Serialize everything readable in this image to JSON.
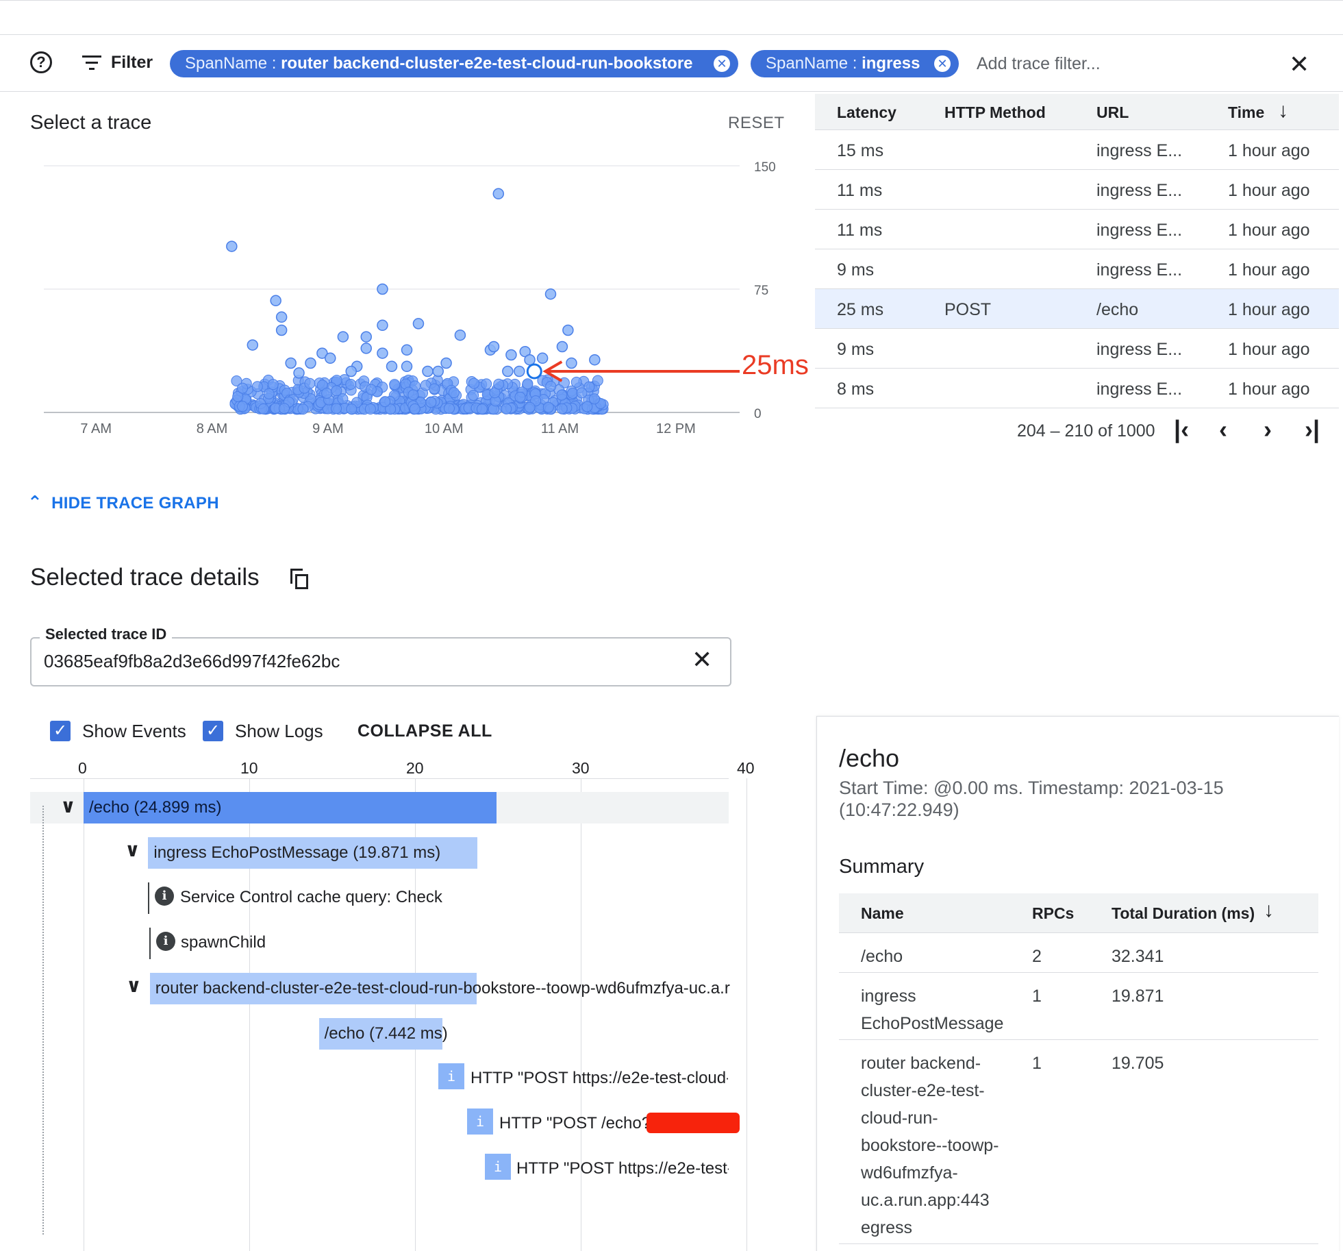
{
  "filter_bar": {
    "help_icon": "help-circle-icon",
    "filter_label": "Filter",
    "chips": [
      {
        "key": "SpanName : ",
        "value": "router backend-cluster-e2e-test-cloud-run-bookstore"
      },
      {
        "key": "SpanName : ",
        "value": "ingress"
      }
    ],
    "add_placeholder": "Add trace filter...",
    "close_icon": "close-icon"
  },
  "scatter": {
    "title": "Select a trace",
    "reset_label": "RESET",
    "y_ticks": [
      "150",
      "75",
      "0"
    ],
    "x_ticks": [
      "7 AM",
      "8 AM",
      "9 AM",
      "10 AM",
      "11 AM",
      "12 PM"
    ],
    "annotation": "25ms",
    "accent": "#4285f4"
  },
  "chart_data": {
    "type": "scatter",
    "xlabel": "",
    "ylabel": "",
    "x_ticks": [
      "7 AM",
      "8 AM",
      "9 AM",
      "10 AM",
      "11 AM",
      "12 PM"
    ],
    "ylim": [
      0,
      150
    ],
    "y_ticks": [
      0,
      75,
      150
    ],
    "points_hours": [
      [
        8.17,
        101
      ],
      [
        10.47,
        133
      ],
      [
        8.55,
        68
      ],
      [
        8.6,
        58
      ],
      [
        8.6,
        50
      ],
      [
        8.35,
        41
      ],
      [
        9.47,
        75
      ],
      [
        9.47,
        53
      ],
      [
        9.47,
        36
      ],
      [
        9.78,
        54
      ],
      [
        9.68,
        38
      ],
      [
        10.14,
        47
      ],
      [
        8.95,
        36
      ],
      [
        9.13,
        46
      ],
      [
        9.33,
        39
      ],
      [
        9.33,
        46
      ],
      [
        10.4,
        38
      ],
      [
        10.43,
        40
      ],
      [
        10.92,
        72
      ],
      [
        11.07,
        50
      ],
      [
        11.02,
        40
      ],
      [
        10.58,
        35
      ],
      [
        10.7,
        37
      ],
      [
        10.74,
        32
      ],
      [
        9.02,
        33
      ],
      [
        9.25,
        28
      ],
      [
        9.55,
        28
      ],
      [
        9.68,
        28
      ],
      [
        9.86,
        25
      ],
      [
        10.02,
        30
      ],
      [
        8.68,
        30
      ],
      [
        8.85,
        30
      ],
      [
        8.75,
        24
      ],
      [
        9.2,
        25
      ],
      [
        9.95,
        25
      ],
      [
        10.55,
        25
      ],
      [
        10.65,
        25
      ],
      [
        10.85,
        33
      ],
      [
        11.1,
        30
      ],
      [
        11.3,
        32
      ],
      [
        10.78,
        25
      ]
    ],
    "selected_point": [
      10.78,
      25
    ],
    "selected_label": "25ms"
  },
  "trace_table": {
    "columns": [
      "Latency",
      "HTTP Method",
      "URL",
      "Time"
    ],
    "sort_icon": "arrow-down-icon",
    "rows": [
      {
        "latency": "15 ms",
        "method": "",
        "url": "ingress E...",
        "time": "1 hour ago"
      },
      {
        "latency": "11 ms",
        "method": "",
        "url": "ingress E...",
        "time": "1 hour ago"
      },
      {
        "latency": "11 ms",
        "method": "",
        "url": "ingress E...",
        "time": "1 hour ago"
      },
      {
        "latency": "9 ms",
        "method": "",
        "url": "ingress E...",
        "time": "1 hour ago"
      },
      {
        "latency": "25 ms",
        "method": "POST",
        "url": "/echo",
        "time": "1 hour ago"
      },
      {
        "latency": "9 ms",
        "method": "",
        "url": "ingress E...",
        "time": "1 hour ago"
      },
      {
        "latency": "8 ms",
        "method": "",
        "url": "ingress E...",
        "time": "1 hour ago"
      }
    ],
    "pagination": "204 – 210 of 1000"
  },
  "hide_graph_label": "HIDE TRACE GRAPH",
  "details": {
    "title": "Selected trace details",
    "trace_id_label": "Selected trace ID",
    "trace_id": "03685eaf9fb8a2d3e66d997f42fe62bc",
    "show_events": "Show Events",
    "show_logs": "Show Logs",
    "collapse_all": "COLLAPSE ALL"
  },
  "waterfall": {
    "axis_ticks": [
      "0",
      "10",
      "20",
      "30",
      "40"
    ],
    "spans": [
      {
        "label": "/echo (24.899 ms)",
        "start": 0,
        "duration": 24.899
      },
      {
        "label": "ingress EchoPostMessage (19.871 ms)",
        "start": 3.9,
        "duration": 19.871
      },
      {
        "label": "router backend-cluster-e2e-test-cloud-run-bookstore--toowp-wd6ufmzfya-uc.a.r",
        "start": 4.0,
        "duration": 19.705
      },
      {
        "label": "/echo (7.442 ms)",
        "start": 14.2,
        "duration": 7.442
      }
    ],
    "events": [
      "Service Control cache query: Check",
      "spawnChild"
    ],
    "logs": [
      "HTTP \"POST https://e2e-test-cloud-",
      "HTTP \"POST /echo?",
      "HTTP \"POST https://e2e-test-"
    ]
  },
  "detail_panel": {
    "title": "/echo",
    "start_time": "Start Time: @0.00 ms. Timestamp: 2021-03-15 (10:47:22.949)",
    "summary_title": "Summary",
    "columns": [
      "Name",
      "RPCs",
      "Total Duration (ms)"
    ],
    "rows": [
      {
        "name": "/echo",
        "rpcs": "2",
        "duration": "32.341"
      },
      {
        "name": "ingress EchoPostMessage",
        "rpcs": "1",
        "duration": "19.871"
      },
      {
        "name": "router backend-cluster-e2e-test-cloud-run-bookstore--toowp-wd6ufmzfya-uc.a.run.app:443 egress",
        "rpcs": "1",
        "duration": "19.705"
      }
    ]
  }
}
